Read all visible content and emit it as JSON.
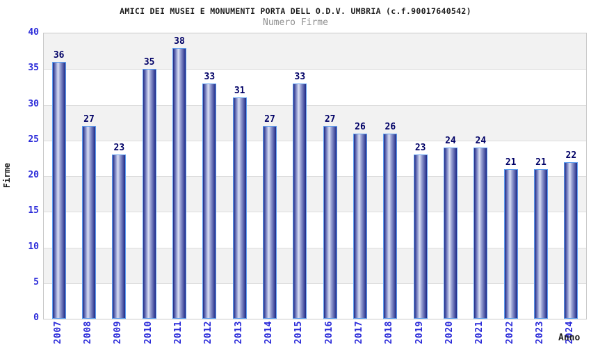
{
  "header": {
    "title": "AMICI DEI MUSEI E MONUMENTI PORTA DELL O.D.V. UMBRIA (c.f.90017640542)",
    "subtitle": "Numero Firme"
  },
  "chart_data": {
    "type": "bar",
    "title": "AMICI DEI MUSEI E MONUMENTI PORTA DELL O.D.V. UMBRIA (c.f.90017640542)",
    "subtitle": "Numero Firme",
    "categories": [
      "2007",
      "2008",
      "2009",
      "2010",
      "2011",
      "2012",
      "2013",
      "2014",
      "2015",
      "2016",
      "2017",
      "2018",
      "2019",
      "2020",
      "2021",
      "2022",
      "2023",
      "2024"
    ],
    "values": [
      36,
      27,
      23,
      35,
      38,
      33,
      31,
      27,
      33,
      27,
      26,
      26,
      23,
      24,
      24,
      21,
      21,
      22
    ],
    "xlabel": "Anno",
    "ylabel": "Firme",
    "ylim": [
      0,
      40
    ],
    "ytick_step": 5,
    "yticks": [
      0,
      5,
      10,
      15,
      20,
      25,
      30,
      35,
      40
    ],
    "grid": true,
    "legend": "none",
    "bar_value_labels": true,
    "x_tick_rotation_deg": 90,
    "band_style": "alternating 5-unit horizontal bands, gray band at 35-40 top"
  },
  "colors": {
    "background": "#ffffff",
    "title_text": "#1c1c1c",
    "subtitle_text": "#909090",
    "tick_label": "#2b2bd9",
    "value_label": "#000066",
    "axis_title_text": "#1c1c1c",
    "band_gray": "#f2f2f2",
    "band_white": "#ffffff",
    "grid_line": "#dcdcdc",
    "plot_border": "#c9c9c9",
    "bar_dark": "#1f2987",
    "bar_mid": "#99a2d4",
    "bar_light": "#dde1f3",
    "bar_border": "#5f9ff0"
  }
}
